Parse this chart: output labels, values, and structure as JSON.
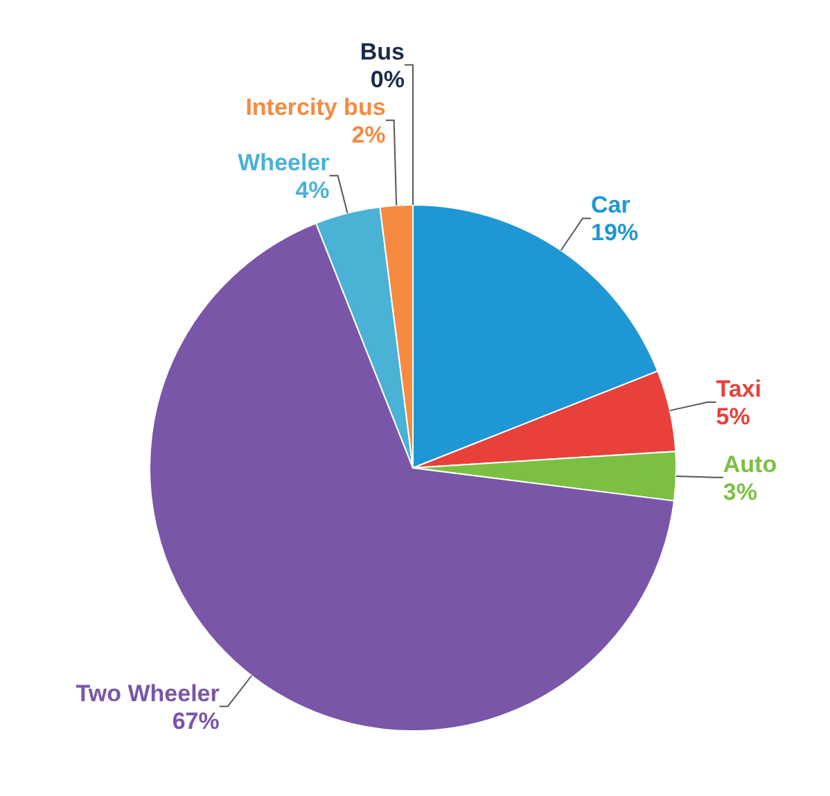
{
  "chart_data": {
    "type": "pie",
    "categories": [
      "Car",
      "Taxi",
      "Auto",
      "Two Wheeler",
      "Wheeler",
      "Intercity bus",
      "Bus"
    ],
    "values": [
      19,
      5,
      3,
      67,
      4,
      2,
      0
    ],
    "colors": [
      "#1f97d4",
      "#e8413b",
      "#7cc043",
      "#7a56a8",
      "#4ab2d4",
      "#f68a3f",
      "#1b2a4c"
    ],
    "value_labels": [
      "19%",
      "5%",
      "3%",
      "67%",
      "4%",
      "2%",
      "0%"
    ],
    "legend": false
  }
}
